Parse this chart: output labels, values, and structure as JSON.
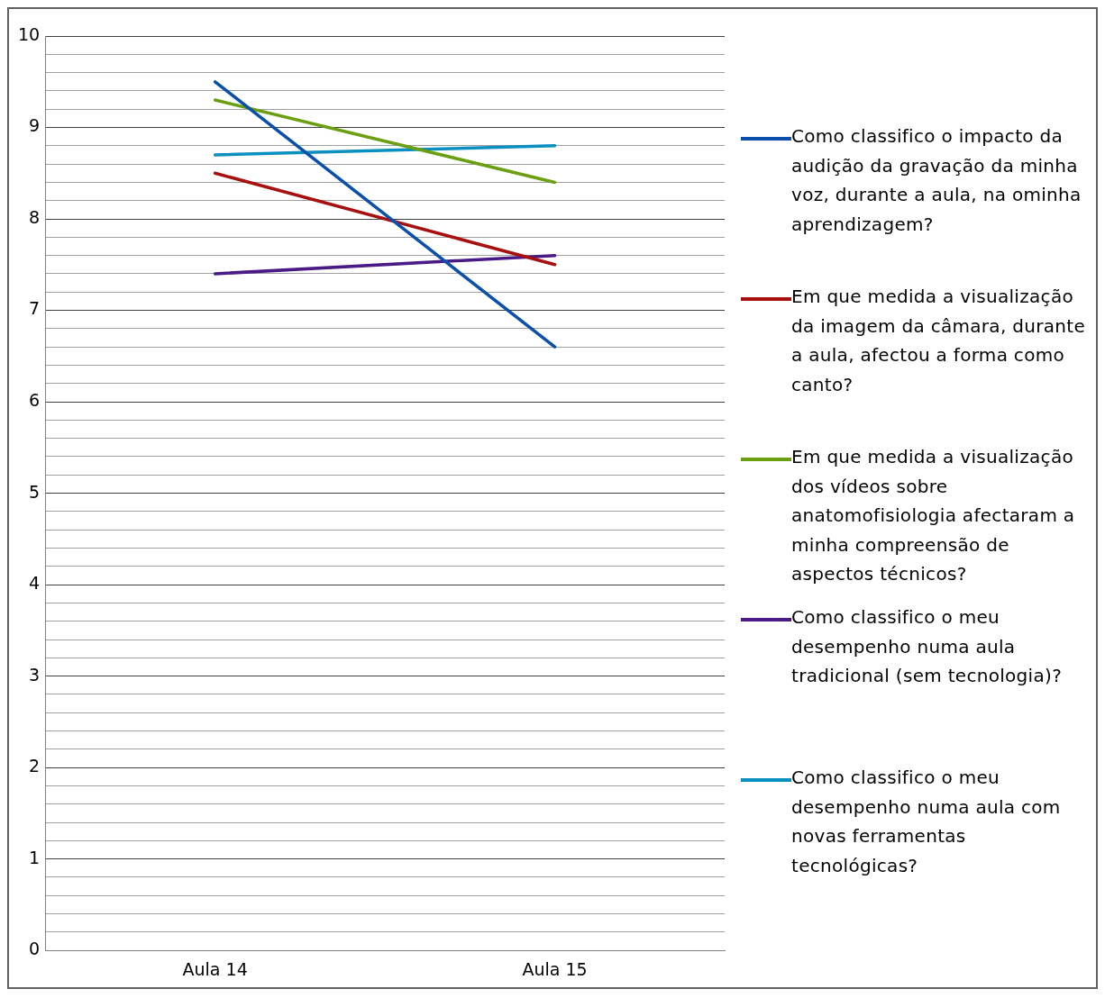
{
  "chart_data": {
    "type": "line",
    "categories": [
      "Aula 14",
      "Aula 15"
    ],
    "series": [
      {
        "name": "Como classifico o impacto da audição da gravação da minha voz, durante a aula, na ominha aprendizagem?",
        "color": "#0a4fa8",
        "values": [
          9.5,
          6.6
        ]
      },
      {
        "name": "Em que medida a visualização da imagem da câmara, durante a aula, afectou a forma como canto?",
        "color": "#a81010",
        "values": [
          8.5,
          7.5
        ]
      },
      {
        "name": "Em que medida a visualização dos vídeos sobre anatomofisiologia afectaram a minha compreensão de aspectos técnicos?",
        "color": "#6aa010",
        "values": [
          9.3,
          8.4
        ]
      },
      {
        "name": "Como classifico o meu desempenho numa aula tradicional (sem tecnologia)?",
        "color": "#4a1a86",
        "values": [
          7.4,
          7.6
        ]
      },
      {
        "name": "Como classifico o meu desempenho numa aula com novas ferramentas tecnológicas?",
        "color": "#0a90c0",
        "values": [
          8.7,
          8.8
        ]
      }
    ],
    "ylim": [
      0,
      10
    ],
    "yticks": [
      0,
      {
        "value": 0.2,
        "label": null
      },
      {
        "value": 0.4,
        "label": null
      },
      {
        "value": 0.6,
        "label": null
      },
      {
        "value": 0.8,
        "label": null
      },
      1,
      {
        "value": 1.2,
        "label": null
      },
      {
        "value": 1.4,
        "label": null
      },
      {
        "value": 1.6,
        "label": null
      },
      {
        "value": 1.8,
        "label": null
      },
      2,
      {
        "value": 2.2,
        "label": null
      },
      {
        "value": 2.4,
        "label": null
      },
      {
        "value": 2.6,
        "label": null
      },
      {
        "value": 2.8,
        "label": null
      },
      3,
      {
        "value": 3.2,
        "label": null
      },
      {
        "value": 3.4,
        "label": null
      },
      {
        "value": 3.6,
        "label": null
      },
      {
        "value": 3.8,
        "label": null
      },
      4,
      {
        "value": 4.2,
        "label": null
      },
      {
        "value": 4.4,
        "label": null
      },
      {
        "value": 4.6,
        "label": null
      },
      {
        "value": 4.8,
        "label": null
      },
      5,
      {
        "value": 5.2,
        "label": null
      },
      {
        "value": 5.4,
        "label": null
      },
      {
        "value": 5.6,
        "label": null
      },
      {
        "value": 5.8,
        "label": null
      },
      6,
      {
        "value": 6.2,
        "label": null
      },
      {
        "value": 6.4,
        "label": null
      },
      {
        "value": 6.6,
        "label": null
      },
      {
        "value": 6.8,
        "label": null
      },
      7,
      {
        "value": 7.2,
        "label": null
      },
      {
        "value": 7.4,
        "label": null
      },
      {
        "value": 7.6,
        "label": null
      },
      {
        "value": 7.8,
        "label": null
      },
      8,
      {
        "value": 8.2,
        "label": null
      },
      {
        "value": 8.4,
        "label": null
      },
      {
        "value": 8.6,
        "label": null
      },
      {
        "value": 8.8,
        "label": null
      },
      9,
      {
        "value": 9.2,
        "label": null
      },
      {
        "value": 9.4,
        "label": null
      },
      {
        "value": 9.6,
        "label": null
      },
      {
        "value": 9.8,
        "label": null
      },
      10
    ],
    "grid": "y",
    "legend": "right",
    "marker": "none",
    "line_style": "solid"
  }
}
